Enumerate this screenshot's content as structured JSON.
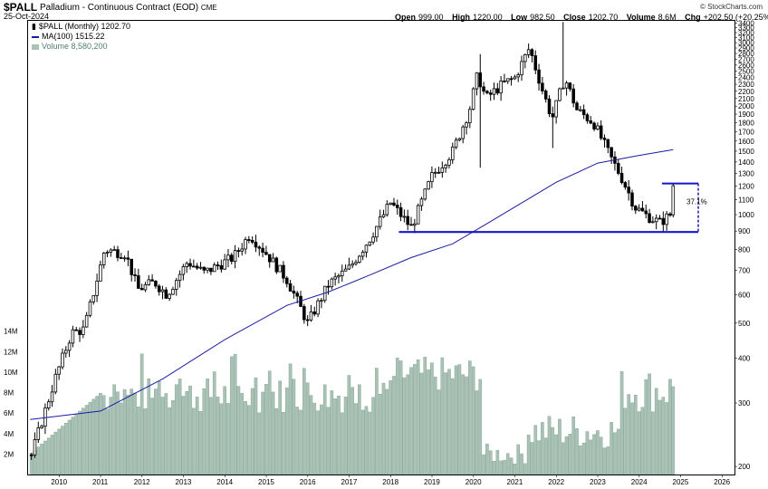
{
  "header": {
    "symbol": "$PALL",
    "name": "Palladium - Continuous Contract (EOD)",
    "exchange": "CME",
    "date": "25-Oct-2024",
    "brand": "© StockCharts.com",
    "open_label": "Open",
    "open": "999.00",
    "high_label": "High",
    "high": "1220.00",
    "low_label": "Low",
    "low": "982.50",
    "close_label": "Close",
    "close": "1202.70",
    "volume_label": "Volume",
    "volume": "8.6M",
    "chg_label": "Chg",
    "chg": "+202.50 (+20.25%)"
  },
  "legend": {
    "price": "$PALL (Monthly) 1202.70",
    "ma": "MA(100) 1515.22",
    "volume": "Volume 8,580,200"
  },
  "colors": {
    "candle": "#000000",
    "ma": "#1a1aa6",
    "volume": "#a9c2b6",
    "support": "#1616c8",
    "measure": "#1a1aa6"
  },
  "chart_data": {
    "type": "candlestick",
    "scale": "log",
    "price_axis": {
      "ticks": [
        200,
        300,
        400,
        500,
        600,
        700,
        800,
        900,
        1000,
        1100,
        1200,
        1300,
        1400,
        1500,
        1600,
        1700,
        1800,
        1900,
        2000,
        2100,
        2200,
        2300,
        2400,
        2500,
        2600,
        2700,
        2800,
        2900,
        3000,
        3100,
        3200,
        3300,
        3400
      ],
      "range": [
        190,
        3450
      ]
    },
    "volume_axis": {
      "ticks": [
        "2M",
        "4M",
        "6M",
        "8M",
        "10M",
        "12M",
        "14M"
      ],
      "tick_values": [
        2,
        4,
        6,
        8,
        10,
        12,
        14
      ],
      "range_millions": [
        0,
        14.5
      ]
    },
    "x_axis": {
      "labels": [
        "2010",
        "2011",
        "2012",
        "2013",
        "2014",
        "2015",
        "2016",
        "2017",
        "2018",
        "2019",
        "2020",
        "2021",
        "2022",
        "2023",
        "2024",
        "2025",
        "2026"
      ],
      "start": 2009.25,
      "end": 2026.3
    },
    "anchors": [
      {
        "t": 2009.3,
        "price": 210
      },
      {
        "t": 2009.9,
        "price": 350
      },
      {
        "t": 2010.3,
        "price": 470
      },
      {
        "t": 2010.6,
        "price": 480
      },
      {
        "t": 2011.1,
        "price": 800
      },
      {
        "t": 2011.6,
        "price": 780
      },
      {
        "t": 2011.9,
        "price": 620
      },
      {
        "t": 2012.3,
        "price": 650
      },
      {
        "t": 2012.6,
        "price": 600
      },
      {
        "t": 2013.1,
        "price": 740
      },
      {
        "t": 2013.5,
        "price": 690
      },
      {
        "t": 2014.2,
        "price": 760
      },
      {
        "t": 2014.6,
        "price": 880
      },
      {
        "t": 2015.0,
        "price": 780
      },
      {
        "t": 2015.5,
        "price": 660
      },
      {
        "t": 2016.0,
        "price": 500
      },
      {
        "t": 2016.5,
        "price": 640
      },
      {
        "t": 2017.0,
        "price": 710
      },
      {
        "t": 2017.5,
        "price": 860
      },
      {
        "t": 2018.0,
        "price": 1080
      },
      {
        "t": 2018.5,
        "price": 920
      },
      {
        "t": 2019.0,
        "price": 1280
      },
      {
        "t": 2019.5,
        "price": 1500
      },
      {
        "t": 2019.9,
        "price": 1950
      },
      {
        "t": 2020.1,
        "price": 2450
      },
      {
        "t": 2020.3,
        "price": 2100
      },
      {
        "t": 2020.7,
        "price": 2300
      },
      {
        "t": 2021.0,
        "price": 2400
      },
      {
        "t": 2021.35,
        "price": 2900
      },
      {
        "t": 2021.7,
        "price": 2150
      },
      {
        "t": 2021.9,
        "price": 1850
      },
      {
        "t": 2022.2,
        "price": 2400
      },
      {
        "t": 2022.5,
        "price": 1950
      },
      {
        "t": 2022.9,
        "price": 1800
      },
      {
        "t": 2023.3,
        "price": 1450
      },
      {
        "t": 2023.6,
        "price": 1250
      },
      {
        "t": 2023.9,
        "price": 1050
      },
      {
        "t": 2024.2,
        "price": 990
      },
      {
        "t": 2024.5,
        "price": 950
      },
      {
        "t": 2024.75,
        "price": 1000
      },
      {
        "t": 2024.82,
        "price": 1202.7
      }
    ],
    "spikes": [
      {
        "t": 2020.15,
        "high": 2790
      },
      {
        "t": 2020.2,
        "low": 1350
      },
      {
        "t": 2022.17,
        "high": 3425
      },
      {
        "t": 2021.88,
        "low": 1530
      }
    ],
    "last_candle": {
      "open": 999.0,
      "high": 1220.0,
      "low": 982.5,
      "close": 1202.7
    },
    "moving_average": {
      "name": "MA(100)",
      "points": [
        {
          "t": 2009.3,
          "v": 270
        },
        {
          "t": 2011.0,
          "v": 285
        },
        {
          "t": 2012.5,
          "v": 350
        },
        {
          "t": 2014.0,
          "v": 450
        },
        {
          "t": 2015.5,
          "v": 560
        },
        {
          "t": 2016.5,
          "v": 610
        },
        {
          "t": 2017.5,
          "v": 680
        },
        {
          "t": 2018.5,
          "v": 760
        },
        {
          "t": 2019.5,
          "v": 830
        },
        {
          "t": 2020.3,
          "v": 940
        },
        {
          "t": 2021.0,
          "v": 1050
        },
        {
          "t": 2022.0,
          "v": 1230
        },
        {
          "t": 2023.0,
          "v": 1390
        },
        {
          "t": 2024.0,
          "v": 1460
        },
        {
          "t": 2024.82,
          "v": 1515.22
        }
      ]
    },
    "annotations": {
      "support_level": 895,
      "support_from": 2018.2,
      "top_level": 1220,
      "top_from": 2024.55,
      "measure_pct": "37.1%"
    }
  }
}
